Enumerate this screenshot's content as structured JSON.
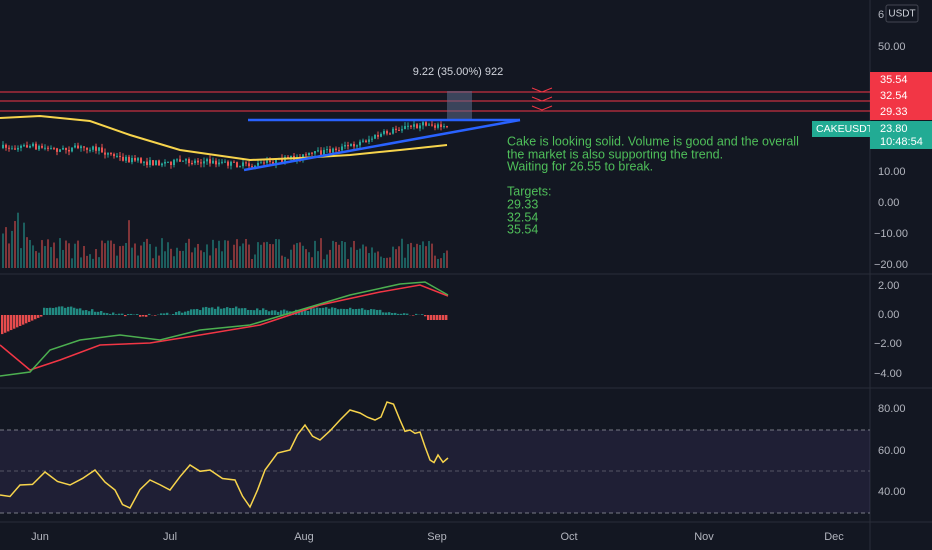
{
  "price_axis": {
    "currency": "USDT",
    "top_cut": "6",
    "ticks": [
      "50.00",
      "10.00",
      "0.00",
      "−10.00",
      "−20.00"
    ]
  },
  "price_labels": {
    "levels": [
      "35.54",
      "32.54",
      "29.33"
    ],
    "symbol": "CAKEUSDT",
    "last": "23.80",
    "countdown": "10:48:54"
  },
  "measure": "9.22 (35.00%) 922",
  "note": {
    "lines": [
      "Cake is looking solid. Volume is good and the overall",
      "the market is also supporting the trend.",
      " Waiting for 26.55 to break."
    ],
    "targets_title": "Targets:",
    "targets": [
      "29.33",
      "32.54",
      "35.54"
    ]
  },
  "macd_axis": {
    "ticks": [
      "2.00",
      "0.00",
      "−2.00",
      "−4.00"
    ]
  },
  "rsi_axis": {
    "ticks": [
      "80.00",
      "60.00",
      "40.00"
    ]
  },
  "time_axis": {
    "ticks": [
      "Jun",
      "Jul",
      "Aug",
      "Sep",
      "Oct",
      "Nov",
      "Dec"
    ]
  }
}
